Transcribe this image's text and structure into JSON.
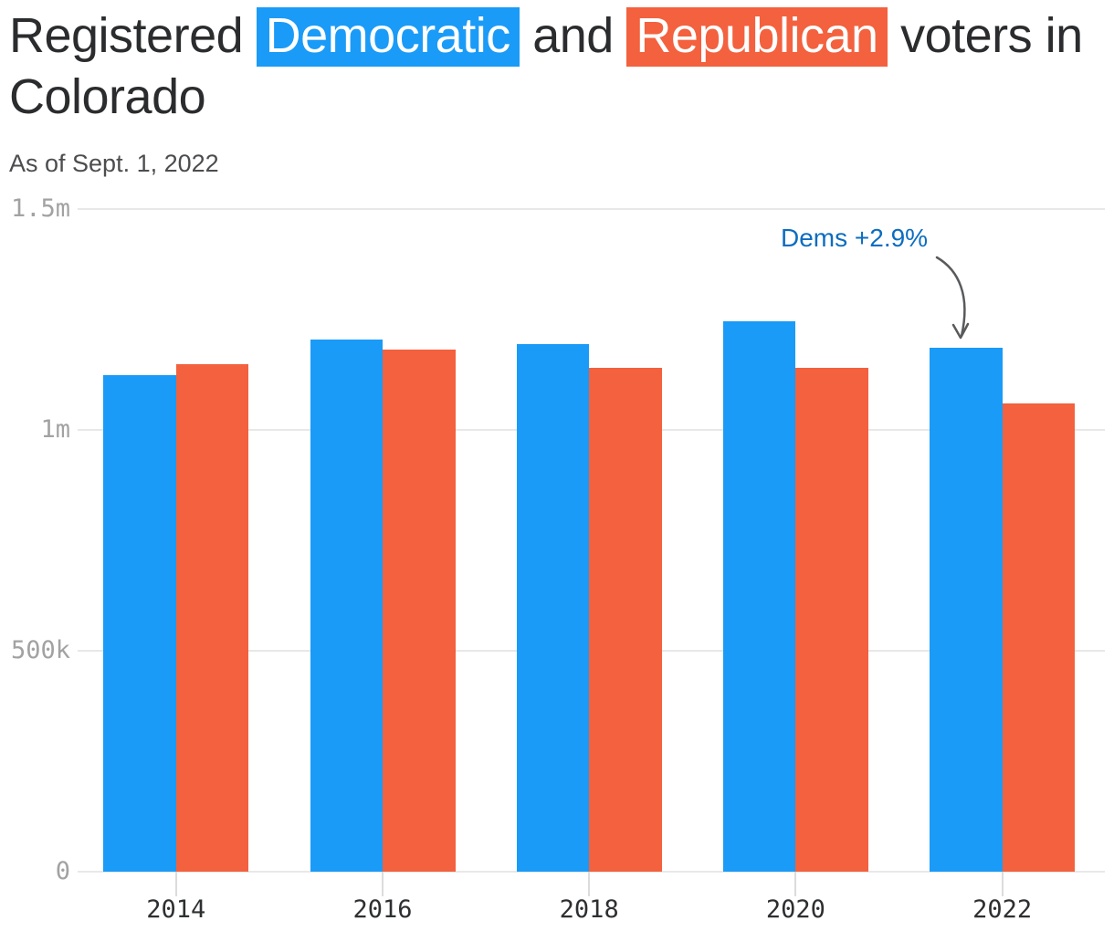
{
  "header": {
    "title": {
      "part1": "Registered",
      "dem": "Democratic",
      "part2": "and",
      "rep": "Republican",
      "part3": "voters in",
      "part4": "Colorado"
    },
    "subtitle": "As of Sept. 1, 2022"
  },
  "chart_data": {
    "type": "bar",
    "title": "Registered Democratic and Republican voters in Colorado",
    "subtitle": "As of Sept. 1, 2022",
    "categories": [
      "2014",
      "2016",
      "2018",
      "2020",
      "2022"
    ],
    "series": [
      {
        "name": "Democratic",
        "color": "#1a9bf7",
        "values": [
          1125000,
          1205000,
          1194000,
          1246000,
          1186000
        ]
      },
      {
        "name": "Republican",
        "color": "#f3613e",
        "values": [
          1149000,
          1182000,
          1140000,
          1141000,
          1060000
        ]
      }
    ],
    "ylim": [
      0,
      1500000
    ],
    "yticks": [
      {
        "value": 0,
        "label": "0"
      },
      {
        "value": 500000,
        "label": "500k"
      },
      {
        "value": 1000000,
        "label": "1m"
      },
      {
        "value": 1500000,
        "label": "1.5m"
      }
    ],
    "grid": "horizontal",
    "legend": "title-highlights",
    "annotation": {
      "text": "Dems +2.9%",
      "color": "#0c6dc0",
      "target_category": "2022",
      "target_series": "Democratic"
    }
  }
}
